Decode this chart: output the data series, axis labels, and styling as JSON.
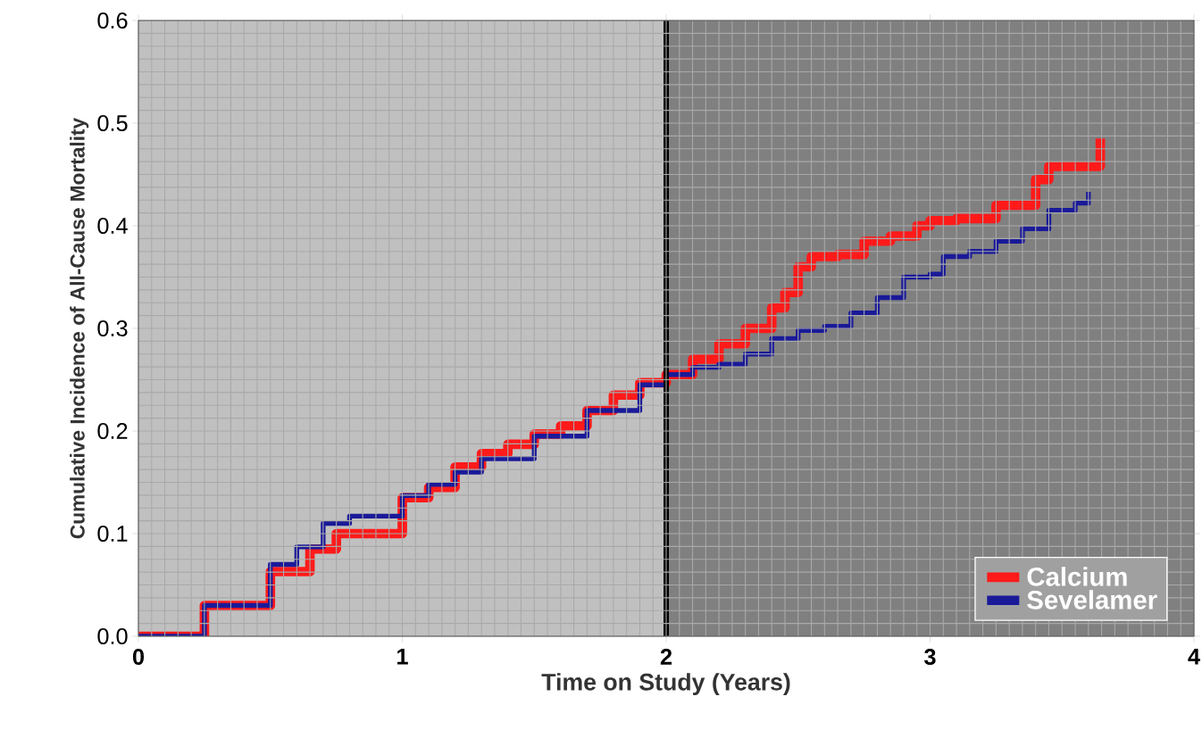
{
  "chart_data": {
    "type": "step",
    "xlabel": "Time on Study (Years)",
    "ylabel": "Cumulative Incidence of All-Cause Mortality",
    "xlim": [
      0,
      4
    ],
    "ylim": [
      0,
      0.6
    ],
    "xticks": [
      0,
      1,
      2,
      3,
      4
    ],
    "yticks": [
      {
        "value": 0,
        "label": "0.0"
      },
      {
        "value": 0.1,
        "label": "0.1"
      },
      {
        "value": 0.2,
        "label": "0.2"
      },
      {
        "value": 0.3,
        "label": "0.3"
      },
      {
        "value": 0.4,
        "label": "0.4"
      },
      {
        "value": 0.5,
        "label": "0.5"
      },
      {
        "value": 0.6,
        "label": "0.6"
      }
    ],
    "grid": true,
    "legend": "bottom right",
    "line_style": "solid",
    "marker": "none",
    "bands": [
      {
        "axis": "x",
        "from": 0,
        "to": 2,
        "color": "#c0c0c0"
      },
      {
        "axis": "x",
        "from": 2,
        "to": 4,
        "color": "#808080"
      }
    ],
    "ref_lines": [
      {
        "axis": "x",
        "value": 2,
        "color": "#000000"
      }
    ],
    "series": [
      {
        "name": "Calcium",
        "color": "#ff1a1a",
        "x": [
          0,
          0.25,
          0.5,
          0.65,
          0.75,
          1.0,
          1.1,
          1.2,
          1.3,
          1.4,
          1.5,
          1.6,
          1.7,
          1.8,
          1.9,
          2.0,
          2.1,
          2.2,
          2.3,
          2.4,
          2.45,
          2.5,
          2.55,
          2.65,
          2.75,
          2.85,
          2.95,
          3.0,
          3.1,
          3.25,
          3.38,
          3.4,
          3.45,
          3.645,
          3.645
        ],
        "values": [
          0,
          0.03,
          0.063,
          0.085,
          0.1,
          0.135,
          0.145,
          0.165,
          0.178,
          0.187,
          0.197,
          0.205,
          0.22,
          0.235,
          0.247,
          0.255,
          0.27,
          0.285,
          0.3,
          0.32,
          0.335,
          0.36,
          0.37,
          0.372,
          0.385,
          0.39,
          0.4,
          0.405,
          0.407,
          0.42,
          0.42,
          0.445,
          0.458,
          0.458,
          0.485
        ]
      },
      {
        "name": "Sevelamer",
        "color": "#1a1a99",
        "x": [
          0,
          0.25,
          0.5,
          0.6,
          0.7,
          0.8,
          1.0,
          1.1,
          1.2,
          1.3,
          1.5,
          1.7,
          1.9,
          2.0,
          2.1,
          2.2,
          2.3,
          2.4,
          2.5,
          2.6,
          2.7,
          2.8,
          2.9,
          3.0,
          3.05,
          3.15,
          3.25,
          3.35,
          3.45,
          3.55,
          3.6
        ],
        "values": [
          0,
          0.03,
          0.07,
          0.087,
          0.11,
          0.117,
          0.137,
          0.148,
          0.16,
          0.173,
          0.195,
          0.22,
          0.245,
          0.255,
          0.262,
          0.265,
          0.275,
          0.29,
          0.298,
          0.302,
          0.315,
          0.33,
          0.35,
          0.353,
          0.37,
          0.375,
          0.385,
          0.397,
          0.415,
          0.422,
          0.433
        ]
      }
    ]
  }
}
